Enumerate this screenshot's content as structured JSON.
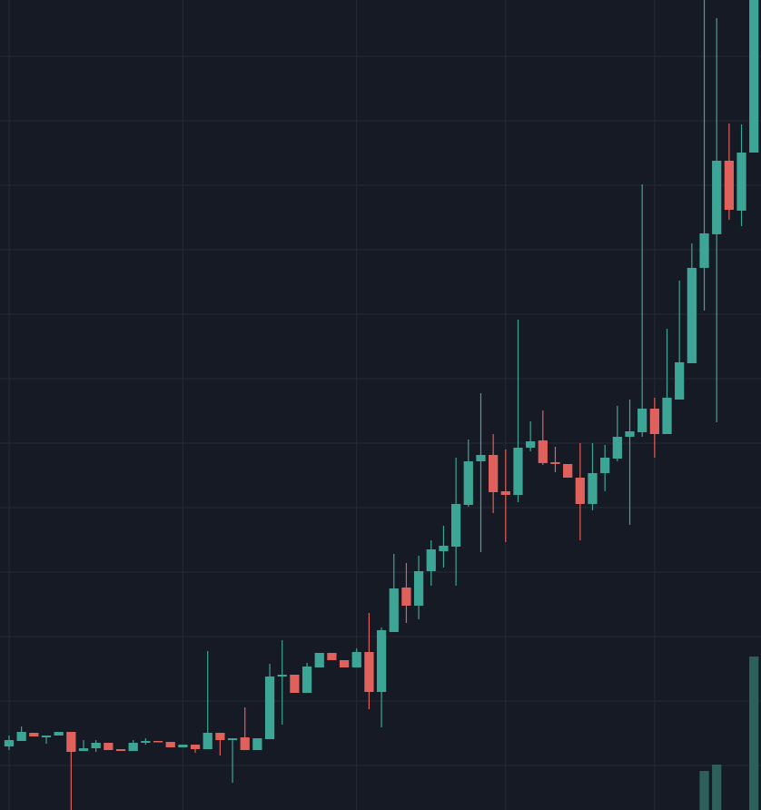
{
  "chart_data": {
    "type": "candlestick",
    "x": [
      0,
      1,
      2,
      3,
      4,
      5,
      6,
      7,
      8,
      9,
      10,
      11,
      12,
      13,
      14,
      15,
      16,
      17,
      18,
      19,
      20,
      21,
      22,
      23,
      24,
      25,
      26,
      27,
      28,
      29,
      30,
      31,
      32,
      33,
      34,
      35,
      36,
      37,
      38,
      39,
      40,
      41,
      42,
      43,
      44,
      45,
      46,
      47,
      48,
      49,
      50,
      51,
      52,
      53,
      54,
      55,
      56,
      57,
      58,
      59,
      60
    ],
    "open": [
      70,
      76,
      85,
      80,
      82,
      86,
      65,
      68,
      74,
      67,
      65,
      74,
      76,
      75,
      69,
      72,
      67,
      85,
      77,
      80,
      66,
      78,
      147,
      149,
      129,
      157,
      173,
      165,
      157,
      174,
      130,
      196,
      245,
      225,
      263,
      285,
      290,
      336,
      384,
      391,
      351,
      347,
      399,
      407,
      383,
      381,
      366,
      337,
      371,
      387,
      411,
      416,
      442,
      414,
      452,
      492,
      597,
      634,
      715,
      660,
      724
    ],
    "high": [
      82,
      92,
      85,
      82,
      86,
      86,
      77,
      77,
      74,
      67,
      77,
      79,
      76,
      75,
      72,
      72,
      175,
      85,
      79,
      113,
      79,
      161,
      187,
      149,
      162,
      173,
      173,
      165,
      178,
      217,
      201,
      282,
      272,
      280,
      297,
      313,
      388,
      408,
      459,
      414,
      397,
      540,
      428,
      440,
      400,
      381,
      404,
      404,
      402,
      445,
      452,
      689,
      454,
      530,
      583,
      624,
      892,
      872,
      756,
      755,
      892
    ],
    "low": [
      66,
      76,
      81,
      73,
      82,
      0,
      65,
      64,
      66,
      65,
      65,
      72,
      75,
      69,
      69,
      63,
      67,
      60,
      30,
      66,
      66,
      78,
      94,
      129,
      129,
      157,
      165,
      157,
      157,
      111,
      91,
      196,
      206,
      210,
      247,
      267,
      247,
      334,
      284,
      327,
      295,
      339,
      395,
      380,
      372,
      366,
      297,
      330,
      351,
      384,
      314,
      411,
      388,
      414,
      452,
      492,
      550,
      427,
      650,
      643,
      724
    ],
    "close": [
      77,
      86,
      81,
      82,
      86,
      64,
      68,
      74,
      66,
      65,
      74,
      76,
      75,
      69,
      72,
      67,
      85,
      77,
      79,
      66,
      79,
      147,
      149,
      129,
      158,
      173,
      165,
      157,
      174,
      130,
      198,
      244,
      225,
      263,
      287,
      291,
      337,
      384,
      391,
      350,
      347,
      399,
      406,
      382,
      381,
      366,
      337,
      371,
      388,
      411,
      417,
      442,
      414,
      454,
      493,
      597,
      635,
      715,
      661,
      724,
      892
    ],
    "volume": [
      0,
      0,
      0,
      0,
      0,
      0,
      0,
      0,
      0,
      0,
      0,
      0,
      0,
      0,
      0,
      0,
      0,
      0,
      0,
      0,
      0,
      0,
      0,
      0,
      0,
      0,
      0,
      0,
      0,
      0,
      0,
      0,
      0,
      0,
      0,
      0,
      0,
      0,
      0,
      0,
      0,
      0,
      0,
      0,
      0,
      0,
      0,
      0,
      0,
      0,
      0,
      0,
      0,
      0,
      0,
      0,
      43,
      50,
      0,
      0,
      169
    ],
    "up_color": "#3da596",
    "down_color": "#e0605b",
    "volume_color": "#2e605b",
    "xlim": [
      -0.73,
      60.57
    ],
    "ylim": [
      0,
      892
    ],
    "xticks": [
      0,
      14,
      28,
      40,
      52
    ],
    "yticks": [
      49,
      120,
      191,
      262,
      333,
      404,
      475,
      546,
      617,
      688,
      759,
      830
    ],
    "grid": true
  }
}
